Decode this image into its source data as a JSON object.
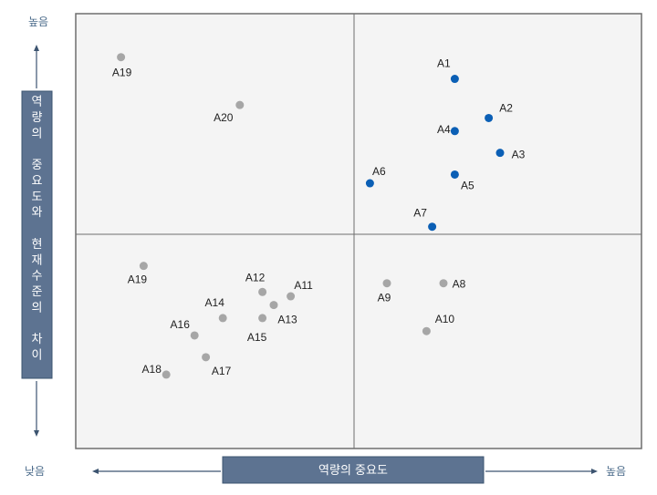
{
  "chart_data": {
    "type": "scatter",
    "title": "",
    "xlabel": "역량의 중요도",
    "ylabel": "역량의 중요도와 현재수준의 차이",
    "x_axis": {
      "low_label": "낮음",
      "high_label": "높음"
    },
    "y_axis": {
      "low_label": "낮음",
      "high_label": "높음"
    },
    "xlim": [
      0,
      100
    ],
    "ylim": [
      0,
      100
    ],
    "quadrant_split": {
      "x": 50,
      "y": 50
    },
    "grid": false,
    "colors": {
      "highlight": "#0b5fb5",
      "normal": "#a6a6a6",
      "panel": "#f4f4f4",
      "label_box": "#5d7391"
    },
    "points": [
      {
        "label": "A1",
        "x": 67,
        "y": 85,
        "group": "highlight"
      },
      {
        "label": "A2",
        "x": 73,
        "y": 76,
        "group": "highlight"
      },
      {
        "label": "A3",
        "x": 75,
        "y": 68,
        "group": "highlight"
      },
      {
        "label": "A4",
        "x": 67,
        "y": 73,
        "group": "highlight"
      },
      {
        "label": "A5",
        "x": 67,
        "y": 63,
        "group": "highlight"
      },
      {
        "label": "A6",
        "x": 52,
        "y": 61,
        "group": "highlight"
      },
      {
        "label": "A7",
        "x": 63,
        "y": 51,
        "group": "highlight"
      },
      {
        "label": "A8",
        "x": 65,
        "y": 38,
        "group": "normal"
      },
      {
        "label": "A9",
        "x": 55,
        "y": 38,
        "group": "normal"
      },
      {
        "label": "A10",
        "x": 62,
        "y": 27,
        "group": "normal"
      },
      {
        "label": "A11",
        "x": 38,
        "y": 35,
        "group": "normal"
      },
      {
        "label": "A12",
        "x": 33,
        "y": 36,
        "group": "normal"
      },
      {
        "label": "A13",
        "x": 35,
        "y": 33,
        "group": "normal"
      },
      {
        "label": "A14",
        "x": 26,
        "y": 30,
        "group": "normal"
      },
      {
        "label": "A15",
        "x": 33,
        "y": 30,
        "group": "normal"
      },
      {
        "label": "A16",
        "x": 21,
        "y": 26,
        "group": "normal"
      },
      {
        "label": "A17",
        "x": 23,
        "y": 21,
        "group": "normal"
      },
      {
        "label": "A18",
        "x": 16,
        "y": 17,
        "group": "normal"
      },
      {
        "label": "A19",
        "x": 12,
        "y": 42,
        "group": "normal"
      },
      {
        "label": "A19",
        "x": 8,
        "y": 90,
        "group": "normal"
      },
      {
        "label": "A20",
        "x": 29,
        "y": 79,
        "group": "normal"
      }
    ]
  }
}
